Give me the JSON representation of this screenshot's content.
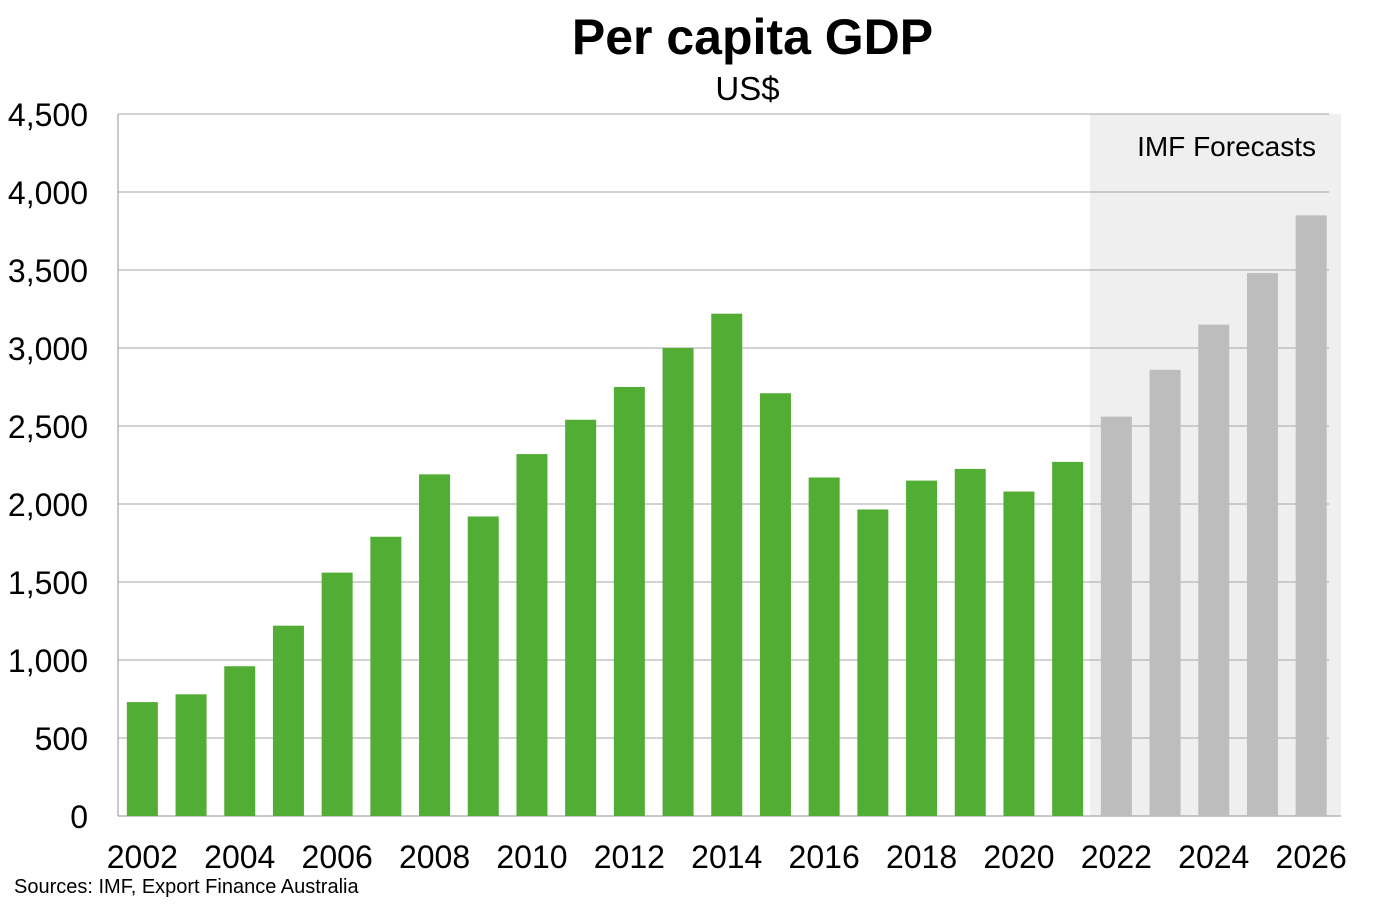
{
  "title": "Per capita GDP",
  "subtitle": "US$",
  "source": "Sources: IMF, Export Finance Australia",
  "forecast_label": "IMF Forecasts",
  "colors": {
    "actual": "#52ad34",
    "forecast": "#bdbdbd",
    "forecast_band": "#efefef",
    "grid": "#a6a6a6"
  },
  "chart_data": {
    "type": "bar",
    "title": "Per capita GDP",
    "subtitle": "US$",
    "xlabel": "",
    "ylabel": "",
    "ylim": [
      0,
      4500
    ],
    "yticks": [
      "0",
      "500",
      "1,000",
      "1,500",
      "2,000",
      "2,500",
      "3,000",
      "3,500",
      "4,000",
      "4,500"
    ],
    "xtick_labels": [
      "2002",
      "2004",
      "2006",
      "2008",
      "2010",
      "2012",
      "2014",
      "2016",
      "2018",
      "2020",
      "2022",
      "2024",
      "2026"
    ],
    "grid": true,
    "categories": [
      "2002",
      "2003",
      "2004",
      "2005",
      "2006",
      "2007",
      "2008",
      "2009",
      "2010",
      "2011",
      "2012",
      "2013",
      "2014",
      "2015",
      "2016",
      "2017",
      "2018",
      "2019",
      "2020",
      "2021",
      "2022",
      "2023",
      "2024",
      "2025",
      "2026"
    ],
    "values": [
      730,
      780,
      960,
      1220,
      1560,
      1790,
      2190,
      1920,
      2320,
      2540,
      2750,
      3000,
      3220,
      2710,
      2170,
      1965,
      2150,
      2225,
      2080,
      2270,
      2560,
      2860,
      3150,
      3480,
      3850
    ],
    "forecast_start": "2022",
    "annotations": [
      "IMF Forecasts"
    ]
  }
}
